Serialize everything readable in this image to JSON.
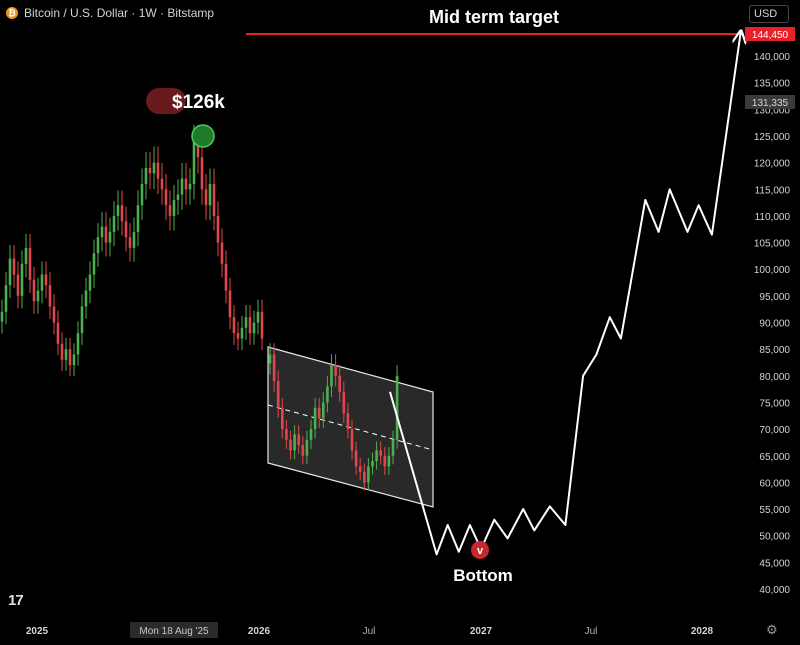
{
  "header": {
    "symbol": "Bitcoin / U.S. Dollar · 1W · Bitstamp",
    "icon": "bitcoin-icon",
    "currency": "USD"
  },
  "annotations": {
    "title": "Mid term target",
    "peak_label": "$126k",
    "bottom_label": "Bottom",
    "bottom_marker": "v"
  },
  "price_axis": {
    "ticks": [
      "140,000",
      "135,000",
      "130,000",
      "125,000",
      "120,000",
      "115,000",
      "110,000",
      "105,000",
      "100,000",
      "95,000",
      "90,000",
      "85,000",
      "80,000",
      "75,000",
      "70,000",
      "65,000",
      "60,000",
      "55,000",
      "50,000",
      "45,000",
      "40,000"
    ],
    "target_badge": "144,450",
    "current_badge": "131,335"
  },
  "time_axis": {
    "labels": [
      "2025",
      "2026",
      "Jul",
      "2027",
      "Jul",
      "2028"
    ],
    "crosshair_label": "Mon 18 Aug '25"
  },
  "colors": {
    "up": "#4caf50",
    "down": "#e0474c",
    "target_line": "#e8202a",
    "projection": "#ffffff"
  },
  "chart_data": {
    "type": "line",
    "title": "Mid term target",
    "ylim": [
      38000,
      152000
    ],
    "series": [
      {
        "values": [
          [
            2026.59,
            77000
          ],
          [
            2026.8,
            46500
          ],
          [
            2026.85,
            52000
          ],
          [
            2026.9,
            47000
          ],
          [
            2026.95,
            52000
          ],
          [
            2027.0,
            47500
          ],
          [
            2027.06,
            53000
          ],
          [
            2027.12,
            49500
          ],
          [
            2027.19,
            55000
          ],
          [
            2027.24,
            51000
          ],
          [
            2027.31,
            55500
          ],
          [
            2027.38,
            52000
          ],
          [
            2027.46,
            80000
          ],
          [
            2027.52,
            84000
          ],
          [
            2027.58,
            91000
          ],
          [
            2027.63,
            87000
          ],
          [
            2027.74,
            113000
          ],
          [
            2027.8,
            107000
          ],
          [
            2027.85,
            115000
          ],
          [
            2027.93,
            107000
          ],
          [
            2027.98,
            112000
          ],
          [
            2028.04,
            106500
          ],
          [
            2028.17,
            144450
          ]
        ]
      }
    ],
    "target_level": 144450,
    "peak_value": 126000
  }
}
